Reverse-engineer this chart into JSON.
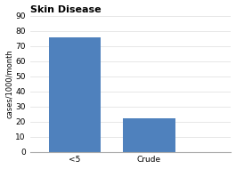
{
  "title": "Skin Disease",
  "categories": [
    "<5",
    "Crude"
  ],
  "values": [
    76,
    22
  ],
  "bar_color": "#4f81bd",
  "ylabel": "cases/1000/month",
  "ylim": [
    0,
    90
  ],
  "yticks": [
    0,
    10,
    20,
    30,
    40,
    50,
    60,
    70,
    80,
    90
  ],
  "title_fontsize": 8,
  "axis_fontsize": 6,
  "tick_fontsize": 6.5,
  "bar_width": 0.35,
  "background_color": "#ffffff",
  "bar_positions": [
    0.25,
    0.75
  ]
}
